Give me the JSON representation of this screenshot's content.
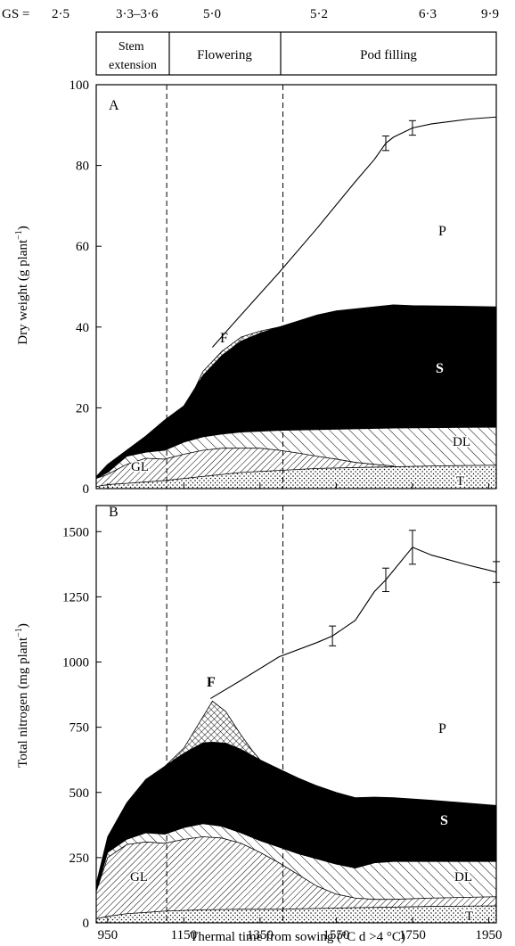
{
  "header": {
    "gs_prefix": "GS = ",
    "gs_values": [
      "2·5",
      "3·3–3·6",
      "5·0",
      "5·2",
      "6·3",
      "9·9"
    ],
    "phases": [
      "Stem extension",
      "Flowering",
      "Pod filling"
    ]
  },
  "panels": {
    "a": {
      "letter": "A",
      "ylabel": "Dry weight (g  plant",
      "ylabel_sup": "−1",
      "ylabel_close": ")",
      "labels": {
        "p": "P",
        "f": "F",
        "s": "S",
        "dl": "DL",
        "gl": "GL",
        "t": "T"
      }
    },
    "b": {
      "letter": "B",
      "ylabel": "Total nitrogen (mg  plant",
      "ylabel_sup": "−1",
      "ylabel_close": ")",
      "labels": {
        "p": "P",
        "f": "F",
        "s": "S",
        "dl": "DL",
        "gl": "GL",
        "t": "T"
      }
    }
  },
  "xaxis": {
    "label": "Thermal time from sowing (°C d >4 °C)",
    "ticks": [
      "950",
      "1150",
      "1350",
      "1550",
      "1750",
      "1950"
    ]
  },
  "chart_data": [
    {
      "type": "area",
      "panel": "A",
      "ylabel": "Dry weight (g plant−1)",
      "xlabel": "Thermal time from sowing (°C d >4 °C)",
      "xlim": [
        920,
        1970
      ],
      "ylim": [
        0,
        100
      ],
      "yticks": [
        0,
        20,
        40,
        60,
        80,
        100
      ],
      "xticks": [
        950,
        1150,
        1350,
        1550,
        1750,
        1950
      ],
      "phase_boundaries": [
        1105,
        1410
      ],
      "series": [
        {
          "name": "T",
          "pattern": "dots",
          "upper": [
            [
              920,
              0.5
            ],
            [
              950,
              1
            ],
            [
              1000,
              1.3
            ],
            [
              1100,
              2
            ],
            [
              1200,
              3
            ],
            [
              1300,
              4
            ],
            [
              1400,
              4.5
            ],
            [
              1500,
              5
            ],
            [
              1600,
              5.2
            ],
            [
              1700,
              5.4
            ],
            [
              1800,
              5.6
            ],
            [
              1970,
              5.8
            ]
          ]
        },
        {
          "name": "GL",
          "pattern": "hatch",
          "upper": [
            [
              920,
              2.5
            ],
            [
              950,
              3.5
            ],
            [
              1000,
              6
            ],
            [
              1050,
              7.5
            ],
            [
              1100,
              7.3
            ],
            [
              1150,
              8.5
            ],
            [
              1200,
              9.5
            ],
            [
              1250,
              10
            ],
            [
              1300,
              10
            ],
            [
              1350,
              10
            ],
            [
              1400,
              9.5
            ],
            [
              1450,
              8.8
            ],
            [
              1500,
              8
            ],
            [
              1550,
              7.3
            ],
            [
              1600,
              6.5
            ],
            [
              1650,
              6
            ],
            [
              1700,
              5.6
            ]
          ]
        },
        {
          "name": "DL",
          "pattern": "sparse-hatch",
          "upper": [
            [
              920,
              2.5
            ],
            [
              950,
              4
            ],
            [
              1000,
              8
            ],
            [
              1050,
              9
            ],
            [
              1100,
              9.5
            ],
            [
              1150,
              11.5
            ],
            [
              1200,
              12.8
            ],
            [
              1250,
              13.5
            ],
            [
              1300,
              14
            ],
            [
              1400,
              14.4
            ],
            [
              1500,
              14.6
            ],
            [
              1600,
              14.8
            ],
            [
              1700,
              15
            ],
            [
              1970,
              15.2
            ]
          ]
        },
        {
          "name": "S",
          "pattern": "solid",
          "upper": [
            [
              920,
              3
            ],
            [
              950,
              6
            ],
            [
              1000,
              9.5
            ],
            [
              1050,
              13
            ],
            [
              1100,
              17
            ],
            [
              1150,
              20.5
            ],
            [
              1180,
              25
            ],
            [
              1200,
              28
            ],
            [
              1250,
              33
            ],
            [
              1300,
              36.5
            ],
            [
              1350,
              38.5
            ],
            [
              1400,
              40
            ],
            [
              1450,
              41.5
            ],
            [
              1500,
              43
            ],
            [
              1550,
              44
            ],
            [
              1600,
              44.5
            ],
            [
              1650,
              45
            ],
            [
              1700,
              45.5
            ],
            [
              1750,
              45.3
            ],
            [
              1850,
              45.2
            ],
            [
              1970,
              45
            ]
          ]
        },
        {
          "name": "F",
          "pattern": "crosshatch",
          "upper": [
            [
              1180,
              25
            ],
            [
              1200,
              29
            ],
            [
              1250,
              34
            ],
            [
              1300,
              37.5
            ],
            [
              1350,
              39
            ],
            [
              1400,
              40
            ]
          ]
        },
        {
          "name": "P",
          "pattern": "none",
          "upper": [
            [
              1225,
              35
            ],
            [
              1300,
              43
            ],
            [
              1400,
              53.5
            ],
            [
              1500,
              64.5
            ],
            [
              1600,
              76
            ],
            [
              1650,
              81.5
            ],
            [
              1680,
              85.5
            ],
            [
              1700,
              87
            ],
            [
              1750,
              89.3
            ],
            [
              1800,
              90.3
            ],
            [
              1900,
              91.5
            ],
            [
              1970,
              92
            ]
          ]
        }
      ],
      "error_bars": [
        [
          1680,
          85.5,
          1.8
        ],
        [
          1750,
          89.3,
          1.8
        ]
      ]
    },
    {
      "type": "area",
      "panel": "B",
      "ylabel": "Total nitrogen (mg plant−1)",
      "xlabel": "Thermal time from sowing (°C d >4 °C)",
      "xlim": [
        920,
        1970
      ],
      "ylim": [
        0,
        1600
      ],
      "yticks": [
        0,
        250,
        500,
        750,
        1000,
        1250,
        1500
      ],
      "xticks": [
        950,
        1150,
        1350,
        1550,
        1750,
        1950
      ],
      "phase_boundaries": [
        1105,
        1410
      ],
      "series": [
        {
          "name": "T",
          "pattern": "dots",
          "upper": [
            [
              920,
              15
            ],
            [
              950,
              25
            ],
            [
              1000,
              35
            ],
            [
              1100,
              45
            ],
            [
              1200,
              50
            ],
            [
              1300,
              52
            ],
            [
              1400,
              52
            ],
            [
              1500,
              55
            ],
            [
              1600,
              58
            ],
            [
              1700,
              60
            ],
            [
              1800,
              63
            ],
            [
              1970,
              65
            ]
          ]
        },
        {
          "name": "GL",
          "pattern": "hatch",
          "upper": [
            [
              920,
              120
            ],
            [
              950,
              250
            ],
            [
              1000,
              300
            ],
            [
              1050,
              310
            ],
            [
              1100,
              305
            ],
            [
              1150,
              320
            ],
            [
              1200,
              330
            ],
            [
              1250,
              325
            ],
            [
              1300,
              305
            ],
            [
              1350,
              270
            ],
            [
              1400,
              230
            ],
            [
              1450,
              185
            ],
            [
              1500,
              140
            ],
            [
              1550,
              110
            ],
            [
              1600,
              95
            ],
            [
              1650,
              90
            ],
            [
              1700,
              90
            ],
            [
              1800,
              95
            ],
            [
              1970,
              100
            ]
          ]
        },
        {
          "name": "DL",
          "pattern": "sparse-hatch",
          "upper": [
            [
              920,
              120
            ],
            [
              950,
              270
            ],
            [
              1000,
              320
            ],
            [
              1050,
              345
            ],
            [
              1100,
              340
            ],
            [
              1150,
              365
            ],
            [
              1200,
              380
            ],
            [
              1250,
              370
            ],
            [
              1300,
              345
            ],
            [
              1350,
              315
            ],
            [
              1400,
              290
            ],
            [
              1450,
              265
            ],
            [
              1500,
              245
            ],
            [
              1550,
              225
            ],
            [
              1600,
              210
            ],
            [
              1650,
              230
            ],
            [
              1700,
              235
            ],
            [
              1800,
              235
            ],
            [
              1970,
              235
            ]
          ]
        },
        {
          "name": "S",
          "pattern": "solid",
          "upper": [
            [
              920,
              150
            ],
            [
              950,
              330
            ],
            [
              1000,
              460
            ],
            [
              1050,
              550
            ],
            [
              1100,
              600
            ],
            [
              1150,
              650
            ],
            [
              1200,
              690
            ],
            [
              1250,
              695
            ],
            [
              1300,
              665
            ],
            [
              1350,
              625
            ],
            [
              1400,
              590
            ],
            [
              1450,
              555
            ],
            [
              1500,
              525
            ],
            [
              1550,
              500
            ],
            [
              1600,
              480
            ],
            [
              1650,
              482
            ],
            [
              1700,
              480
            ],
            [
              1800,
              470
            ],
            [
              1970,
              450
            ]
          ]
        },
        {
          "name": "F",
          "pattern": "crosshatch",
          "upper": [
            [
              1100,
              600
            ],
            [
              1150,
              670
            ],
            [
              1200,
              790
            ],
            [
              1225,
              850
            ],
            [
              1260,
              810
            ],
            [
              1300,
              720
            ],
            [
              1330,
              660
            ],
            [
              1350,
              625
            ]
          ]
        },
        {
          "name": "P",
          "pattern": "none",
          "upper": [
            [
              1220,
              860
            ],
            [
              1300,
              930
            ],
            [
              1400,
              1020
            ],
            [
              1500,
              1075
            ],
            [
              1540,
              1100
            ],
            [
              1600,
              1160
            ],
            [
              1650,
              1270
            ],
            [
              1680,
              1315
            ],
            [
              1750,
              1440
            ],
            [
              1800,
              1410
            ],
            [
              1900,
              1370
            ],
            [
              1970,
              1345
            ]
          ]
        }
      ],
      "error_bars": [
        [
          1540,
          1100,
          38
        ],
        [
          1680,
          1315,
          45
        ],
        [
          1750,
          1440,
          65
        ],
        [
          1970,
          1345,
          40
        ]
      ]
    }
  ]
}
